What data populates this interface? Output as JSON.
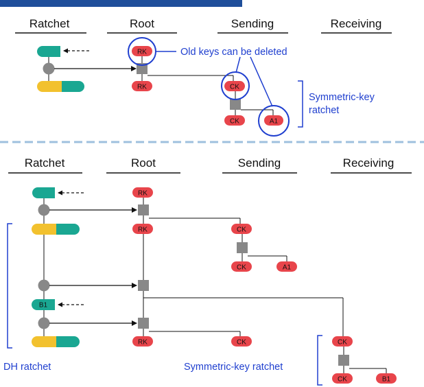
{
  "colors": {
    "top_bar": "#1f4e9a",
    "separator": "#9ec0de",
    "annotation_blue": "#1f3fcf",
    "pill_red": "#e8454b",
    "teal": "#1aa792",
    "yellow": "#f2c12e",
    "node_gray": "#888888",
    "line": "#111111"
  },
  "top": {
    "headers": {
      "ratchet": "Ratchet",
      "root": "Root",
      "sending": "Sending",
      "receiving": "Receiving"
    },
    "pills": {
      "rk_old": "RK",
      "rk": "RK",
      "ck_old": "CK",
      "ck": "CK",
      "a1": "A1"
    },
    "annotations": {
      "old_keys": "Old keys can be deleted",
      "symmetric_line1": "Symmetric-key",
      "symmetric_line2": "ratchet"
    }
  },
  "bottom": {
    "headers": {
      "ratchet": "Ratchet",
      "root": "Root",
      "sending": "Sending",
      "receiving": "Receiving"
    },
    "pills": {
      "rk_top": "RK",
      "rk_mid": "RK",
      "rk_bottom": "RK",
      "ck_send1": "CK",
      "ck_send1_next": "CK",
      "a1": "A1",
      "ck_send2": "CK",
      "ck_recv": "CK",
      "ck_recv_next": "CK",
      "b1": "B1",
      "ratchet_key_b1": "B1"
    },
    "annotations": {
      "dh_ratchet": "DH ratchet",
      "symmetric": "Symmetric-key ratchet"
    }
  }
}
